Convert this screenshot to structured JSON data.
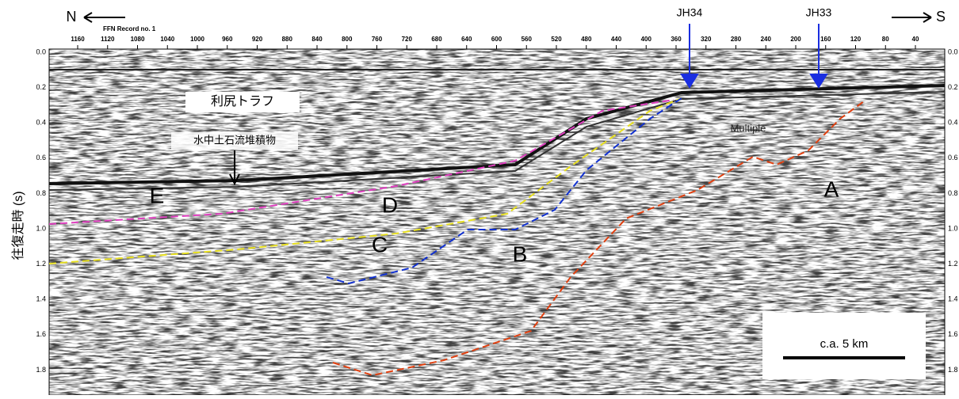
{
  "header": {
    "north": "N",
    "south": "S",
    "record": "FFN Record no. 1"
  },
  "top_ticks": [
    "1160",
    "1120",
    "1080",
    "1040",
    "1000",
    "960",
    "920",
    "880",
    "840",
    "800",
    "760",
    "720",
    "680",
    "640",
    "600",
    "560",
    "520",
    "480",
    "440",
    "400",
    "360",
    "320",
    "280",
    "240",
    "200",
    "160",
    "120",
    "80",
    "40"
  ],
  "y_axis": {
    "label": "往復走時 (s)",
    "ticks": [
      "0.0",
      "0.2",
      "0.4",
      "0.6",
      "0.8",
      "1.0",
      "1.2",
      "1.4",
      "1.6",
      "1.8"
    ]
  },
  "labels": {
    "trough": "利尻トラフ",
    "deposit": "水中土石流堆積物",
    "multiple": "Multiple",
    "jh34": "JH34",
    "jh33": "JH33"
  },
  "units": [
    "A",
    "B",
    "C",
    "D",
    "E"
  ],
  "scale": "c.a. 5 km"
}
